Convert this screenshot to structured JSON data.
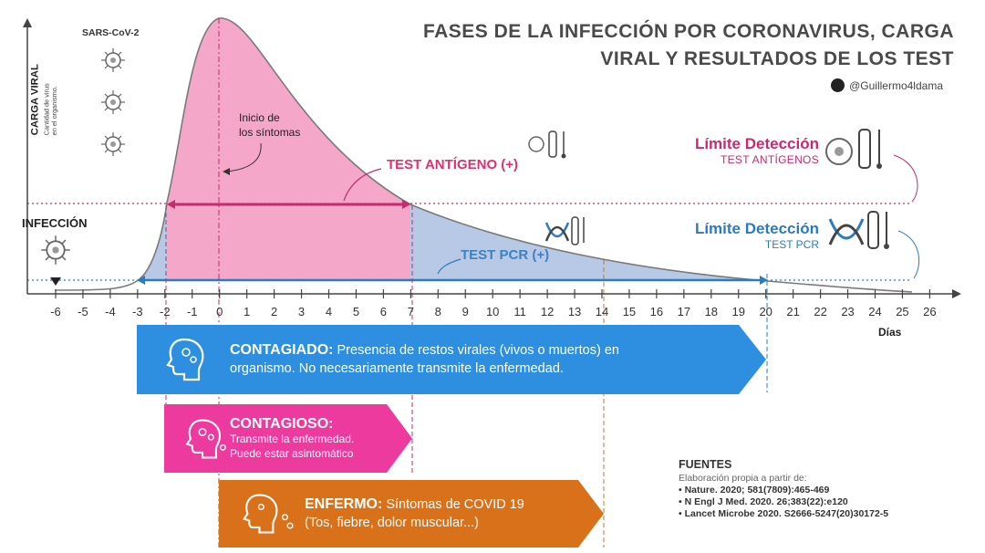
{
  "title": {
    "line1": "FASES DE LA INFECCIÓN POR CORONAVIRUS, CARGA",
    "line2": "VIRAL Y RESULTADOS DE LOS TEST"
  },
  "handle": "@Guillermo4ldama",
  "y_axis": {
    "title": "CARGA VIRAL",
    "subtitle_1": "Cantidad de virus",
    "subtitle_2": "en el organismo."
  },
  "virus_label": "SARS-CoV-2",
  "infection_label": "INFECCIÓN",
  "symptom_onset": {
    "line1": "Inicio de",
    "line2": "los síntomas"
  },
  "test_antigen_label": "TEST ANTÍGENO (+)",
  "test_pcr_label": "TEST PCR (+)",
  "limit_antigen": {
    "title": "Límite Detección",
    "subtitle": "TEST ANTÍGENOS"
  },
  "limit_pcr": {
    "title": "Límite Detección",
    "subtitle": "TEST PCR"
  },
  "x_axis_label": "Días",
  "colors": {
    "pink": "#f4a7c9",
    "pink_dark": "#e0306f",
    "blue_fill": "#b8c9e6",
    "blue_band": "#2e8fe0",
    "magenta_band": "#ec3a9e",
    "orange_band": "#d9711b"
  },
  "chart_data": {
    "type": "area",
    "xlabel": "Días",
    "ylabel": "CARGA VIRAL",
    "x_ticks": [
      "-6",
      "-5",
      "-4",
      "-3",
      "-2",
      "-1",
      "0",
      "1",
      "2",
      "3",
      "4",
      "5",
      "6",
      "7",
      "8",
      "9",
      "10",
      "11",
      "12",
      "13",
      "14",
      "15",
      "16",
      "17",
      "18",
      "19",
      "20",
      "21",
      "22",
      "23",
      "24",
      "25",
      "26"
    ],
    "xlim": [
      -6,
      26
    ],
    "antigen_positive_days": [
      -2,
      7
    ],
    "pcr_positive_days": [
      -3,
      20
    ],
    "symptom_onset_day": 0,
    "infection_day": -6,
    "marked_days": [
      -2,
      0,
      7,
      14,
      20
    ]
  },
  "bands": {
    "contagiado": {
      "title": "CONTAGIADO:",
      "text": "Presencia de restos virales (vivos o muertos) en",
      "text2": "organismo. No necesariamente transmite la enfermedad."
    },
    "contagioso": {
      "title": "CONTAGIOSO:",
      "text": "Transmite la enfermedad.",
      "text2": "Puede estar asintomático"
    },
    "enfermo": {
      "title": "ENFERMO:",
      "text": "Síntomas de COVID 19",
      "text2": "(Tos, fiebre, dolor muscular...)"
    }
  },
  "sources": {
    "heading": "FUENTES",
    "subheading": "Elaboración propia a partir de:",
    "items": [
      "Nature. 2020; 581(7809):465-469",
      "N Engl J Med. 2020. 26;383(22):e120",
      "Lancet Microbe 2020. S2666-5247(20)30172-5"
    ]
  }
}
